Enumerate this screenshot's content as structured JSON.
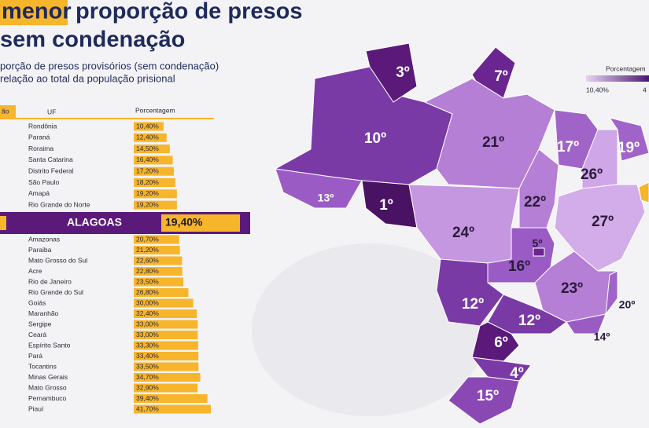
{
  "header": {
    "title_highlight": "menor",
    "title_rest": "proporção de presos",
    "title_line2": "sem condenação",
    "subtitle_line1": "porção de presos provisórios (sem condenação)",
    "subtitle_line2": "relação ao total da população prisional"
  },
  "chart_data": {
    "type": "bar",
    "column_stub": "ão",
    "column_uf": "UF",
    "column_pct": "Porcentagem",
    "color": "#f7b52c",
    "categories": [
      "Rondônia",
      "Paraná",
      "Roraima",
      "Santa Catarina",
      "Distrito Federal",
      "São Paulo",
      "Amapá",
      "Rio Grande do Norte",
      "Amazonas",
      "Paraiba",
      "Mato Grosso do Sul",
      "Acre",
      "Rio de Janeiro",
      "Rio Grande do Sul",
      "Goiás",
      "Maranhão",
      "Sergipe",
      "Ceará",
      "Espírito Santo",
      "Pará",
      "Tocantins",
      "Minas Gerais",
      "Mato Grosso",
      "Pernambuco",
      "Piauí"
    ],
    "values": [
      10.4,
      12.4,
      14.5,
      16.4,
      17.2,
      18.2,
      19.2,
      19.2,
      20.7,
      21.2,
      22.6,
      22.8,
      23.5,
      26.8,
      30.0,
      32.4,
      33.0,
      33.0,
      33.3,
      33.4,
      33.5,
      34.7,
      32.9,
      39.4,
      41.7
    ],
    "value_labels": [
      "10,40%",
      "12,40%",
      "14,50%",
      "16,40%",
      "17,20%",
      "18,20%",
      "19,20%",
      "19,20%",
      "20,70%",
      "21,20%",
      "22,60%",
      "22,80%",
      "23,50%",
      "26,80%",
      "30,00%",
      "32,40%",
      "33,00%",
      "33,00%",
      "33,30%",
      "33,40%",
      "33,50%",
      "34,70%",
      "32,90%",
      "39,40%",
      "41,70%"
    ],
    "highlight": {
      "name": "ALAGOAS",
      "value": 19.4,
      "value_label": "19,40%"
    }
  },
  "map": {
    "legend_title": "Porcentagem",
    "legend_min": "10,40%",
    "legend_max": "4",
    "states": [
      {
        "label": "3º"
      },
      {
        "label": "7º"
      },
      {
        "label": "10º"
      },
      {
        "label": "21º"
      },
      {
        "label": "17º"
      },
      {
        "label": "19º"
      },
      {
        "label": "26º"
      },
      {
        "label": "13º"
      },
      {
        "label": "1º"
      },
      {
        "label": "22º"
      },
      {
        "label": "24º"
      },
      {
        "label": "27º"
      },
      {
        "label": "5º"
      },
      {
        "label": "16º"
      },
      {
        "label": "23º"
      },
      {
        "label": "12º"
      },
      {
        "label": "12º"
      },
      {
        "label": "20º"
      },
      {
        "label": "14º"
      },
      {
        "label": "6º"
      },
      {
        "label": "4º"
      },
      {
        "label": "15º"
      }
    ]
  }
}
